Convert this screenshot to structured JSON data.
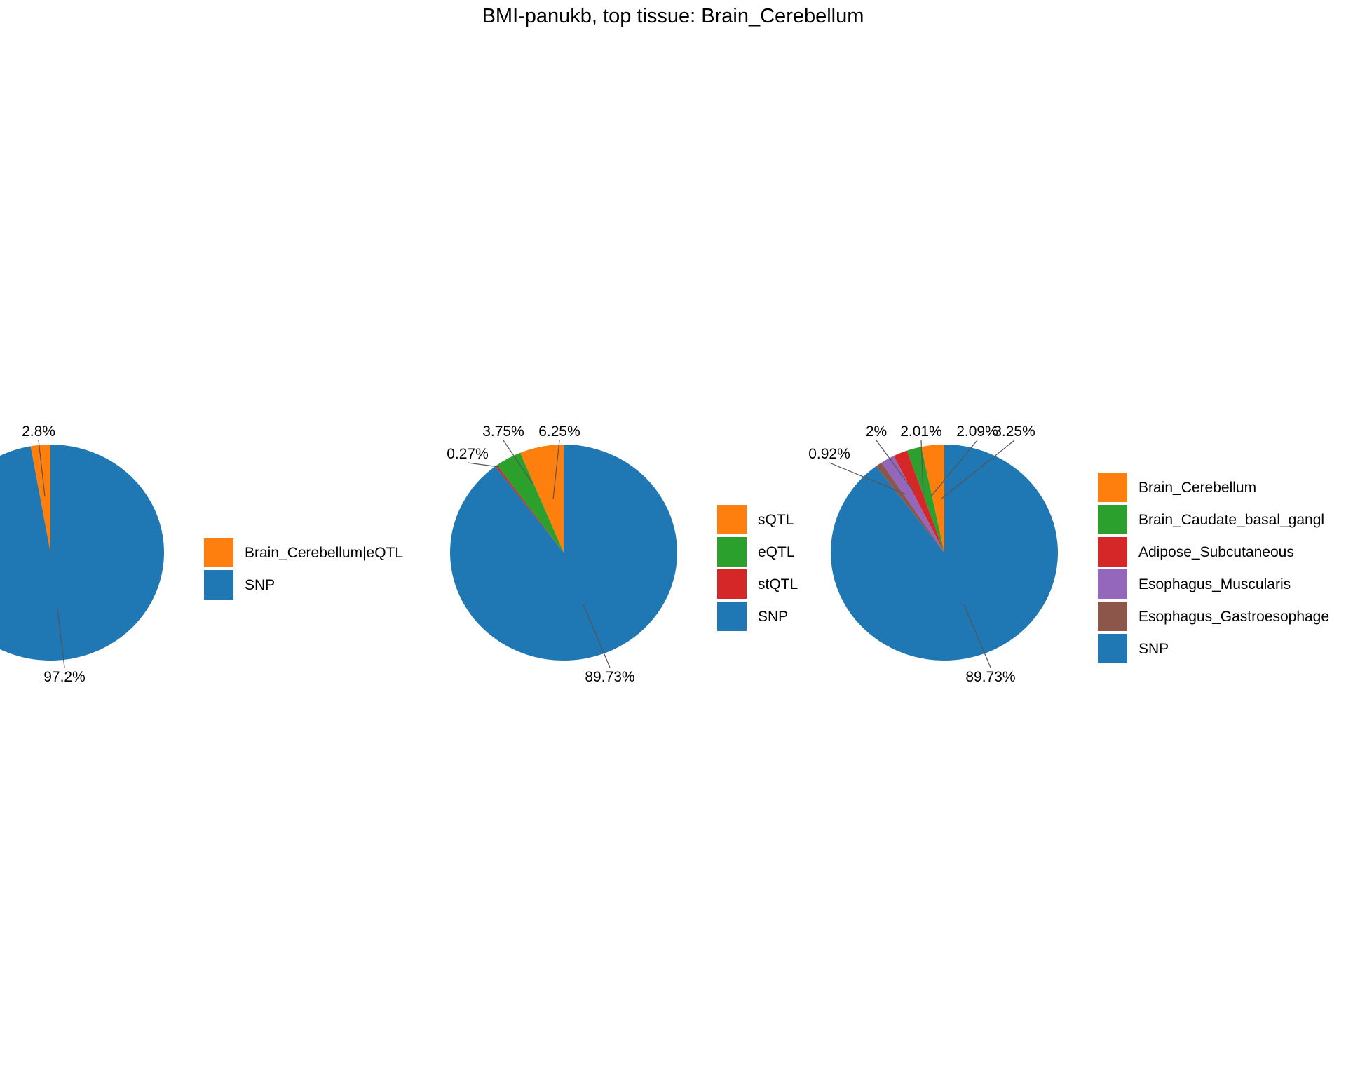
{
  "title": "BMI-panukb, top tissue: Brain_Cerebellum",
  "chart_data": [
    {
      "type": "pie",
      "slices": [
        {
          "label": "Brain_Cerebellum|eQTL",
          "value": 2.8,
          "pct_label": "2.8%",
          "color": "#ff7f0e"
        },
        {
          "label": "SNP",
          "value": 97.2,
          "pct_label": "97.2%",
          "color": "#1f77b4"
        }
      ],
      "legend": [
        "Brain_Cerebellum|eQTL",
        "SNP"
      ],
      "legend_placement": "right"
    },
    {
      "type": "pie",
      "slices": [
        {
          "label": "sQTL",
          "value": 6.25,
          "pct_label": "6.25%",
          "color": "#ff7f0e"
        },
        {
          "label": "eQTL",
          "value": 3.75,
          "pct_label": "3.75%",
          "color": "#2ca02c"
        },
        {
          "label": "stQTL",
          "value": 0.27,
          "pct_label": "0.27%",
          "color": "#d62728"
        },
        {
          "label": "SNP",
          "value": 89.73,
          "pct_label": "89.73%",
          "color": "#1f77b4"
        }
      ],
      "legend": [
        "sQTL",
        "eQTL",
        "stQTL",
        "SNP"
      ],
      "legend_placement": "right"
    },
    {
      "type": "pie",
      "slices": [
        {
          "label": "Brain_Cerebellum",
          "value": 3.25,
          "pct_label": "3.25%",
          "color": "#ff7f0e"
        },
        {
          "label": "Brain_Caudate_basal_gangl",
          "value": 2.09,
          "pct_label": "2.09%",
          "color": "#2ca02c"
        },
        {
          "label": "Adipose_Subcutaneous",
          "value": 2.01,
          "pct_label": "2.01%",
          "color": "#d62728"
        },
        {
          "label": "Esophagus_Muscularis",
          "value": 2,
          "pct_label": "2%",
          "color": "#9467bd"
        },
        {
          "label": "Esophagus_Gastroesophage",
          "value": 0.92,
          "pct_label": "0.92%",
          "color": "#8c564b"
        },
        {
          "label": "SNP",
          "value": 89.73,
          "pct_label": "89.73%",
          "color": "#1f77b4"
        }
      ],
      "legend": [
        "Brain_Cerebellum",
        "Brain_Caudate_basal_gangl",
        "Adipose_Subcutaneous",
        "Esophagus_Muscularis",
        "Esophagus_Gastroesophage",
        "SNP"
      ],
      "legend_placement": "right"
    }
  ]
}
